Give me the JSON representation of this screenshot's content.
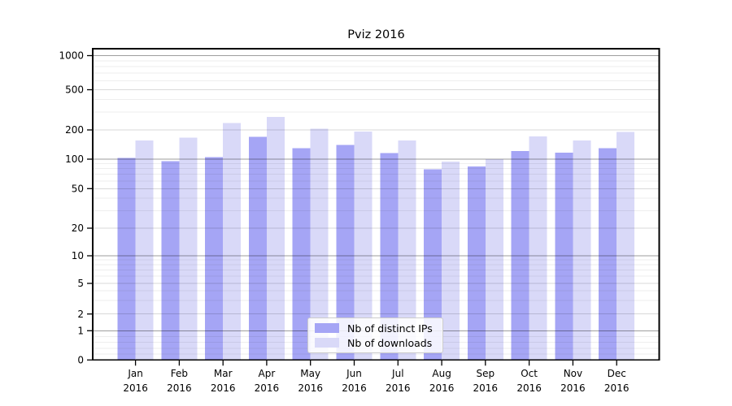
{
  "chart_data": {
    "type": "bar",
    "title": "Pviz 2016",
    "months": [
      "Jan",
      "Feb",
      "Mar",
      "Apr",
      "May",
      "Jun",
      "Jul",
      "Aug",
      "Sep",
      "Oct",
      "Nov",
      "Dec"
    ],
    "year_label": "2016",
    "categories": [
      "Jan 2016",
      "Feb 2016",
      "Mar 2016",
      "Apr 2016",
      "May 2016",
      "Jun 2016",
      "Jul 2016",
      "Aug 2016",
      "Sep 2016",
      "Oct 2016",
      "Nov 2016",
      "Dec 2016"
    ],
    "series": [
      {
        "name": "Nb of distinct IPs",
        "color": "#a5a5f5",
        "values": [
          103,
          95,
          105,
          170,
          130,
          140,
          115,
          79,
          84,
          121,
          117,
          130
        ]
      },
      {
        "name": "Nb of downloads",
        "color": "#d9d9f8",
        "values": [
          155,
          167,
          235,
          270,
          205,
          193,
          156,
          94,
          100,
          172,
          155,
          190
        ]
      }
    ],
    "y_ticks": [
      0,
      1,
      2,
      5,
      10,
      20,
      50,
      100,
      200,
      500,
      1000
    ],
    "y_scale": "symlog",
    "ylim": [
      0,
      1180
    ],
    "xlabel": "",
    "ylabel": "",
    "grid": "horizontal major and minor",
    "legend_position": "lower center"
  }
}
